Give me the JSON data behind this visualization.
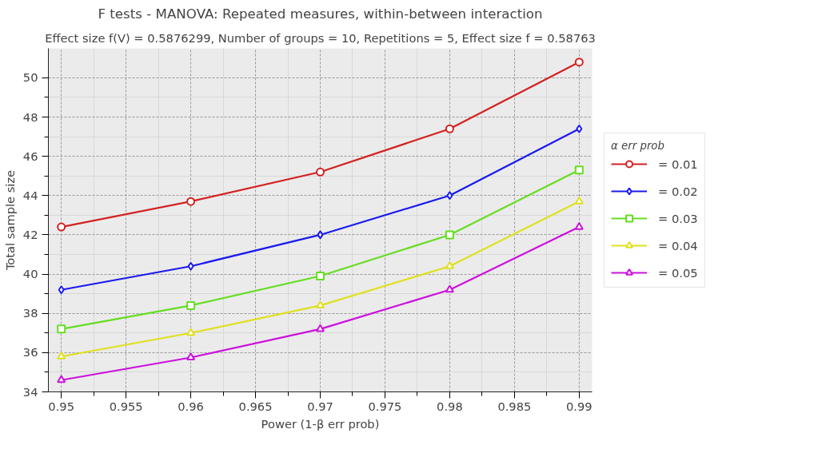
{
  "chart_data": {
    "type": "line",
    "title": "F tests - MANOVA: Repeated measures, within-between interaction",
    "subtitle": "Effect size f(V) = 0.5876299, Number of groups = 10, Repetitions = 5, Effect size f = 0.58763",
    "xlabel": "Power (1-β err prob)",
    "ylabel": "Total sample size",
    "legend_title": "α err prob",
    "x": [
      0.95,
      0.96,
      0.97,
      0.98,
      0.99
    ],
    "series": [
      {
        "name": "= 0.01",
        "color": "#d42020",
        "marker": "circle",
        "values": [
          42.4,
          43.7,
          45.2,
          47.4,
          50.8
        ]
      },
      {
        "name": "= 0.02",
        "color": "#1a1aee",
        "marker": "diamond",
        "values": [
          39.2,
          40.4,
          42.0,
          44.0,
          47.4
        ]
      },
      {
        "name": "= 0.03",
        "color": "#66dd22",
        "marker": "square",
        "values": [
          37.2,
          38.4,
          39.9,
          42.0,
          45.3
        ]
      },
      {
        "name": "= 0.04",
        "color": "#e0e020",
        "marker": "triangle",
        "values": [
          35.8,
          37.0,
          38.4,
          40.4,
          43.7
        ]
      },
      {
        "name": "= 0.05",
        "color": "#cc11dd",
        "marker": "triangle",
        "values": [
          34.6,
          35.75,
          37.2,
          39.2,
          42.4
        ]
      }
    ],
    "xlim": [
      0.949,
      0.991
    ],
    "ylim": [
      34,
      51.5
    ],
    "xticks": [
      0.95,
      0.955,
      0.96,
      0.965,
      0.97,
      0.975,
      0.98,
      0.985,
      0.99
    ],
    "yticks": [
      34,
      36,
      38,
      40,
      42,
      44,
      46,
      48,
      50
    ],
    "grid": true,
    "legend": "right",
    "line_style": "solid"
  }
}
